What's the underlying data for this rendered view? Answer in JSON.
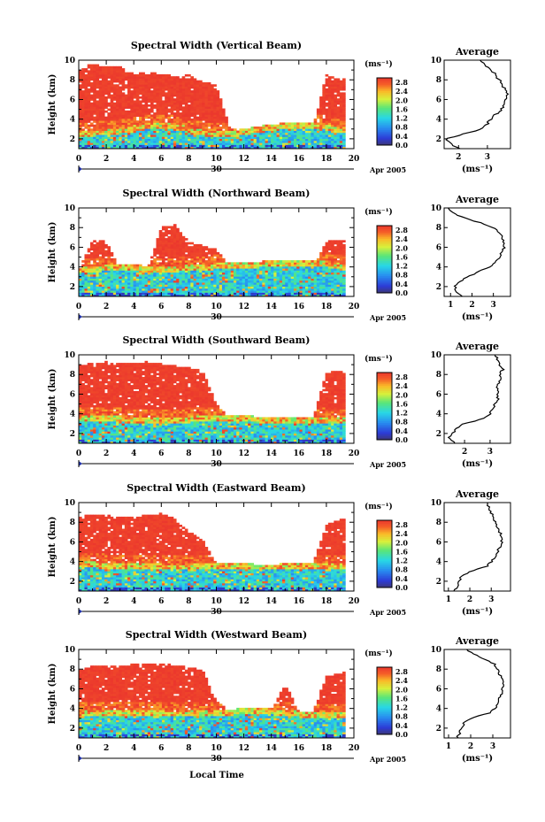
{
  "figure": {
    "x_label": "Local Time",
    "date_day": "30",
    "date_month_year": "Apr 2005"
  },
  "chart_data": [
    {
      "type": "heatmap",
      "title": "Spectral Width (Vertical Beam)",
      "ylabel": "Height (km)",
      "xlim": [
        0,
        20
      ],
      "ylim": [
        1,
        10
      ],
      "x_ticks": [
        0,
        2,
        4,
        6,
        8,
        10,
        12,
        14,
        16,
        18,
        20
      ],
      "y_ticks": [
        2,
        4,
        6,
        8,
        10
      ],
      "colorbar": {
        "unit": "(ms⁻¹)",
        "range": [
          0,
          2.8
        ],
        "ticks": [
          "2.8",
          "2.4",
          "2.0",
          "1.6",
          "1.2",
          "0.8",
          "0.4",
          "0.0"
        ]
      },
      "boundary_height_km": [
        2.5,
        2.6,
        2.8,
        3.2,
        3.3,
        2.9,
        2.4,
        2.5,
        2.9,
        3.2,
        3.4,
        3.3,
        2.8
      ],
      "upper_top_km": [
        9.0,
        9.7,
        9.4,
        9.3,
        8.6,
        8.8,
        8.6,
        8.4,
        8.5,
        7.8,
        7.5,
        3.0,
        3.0,
        3.0,
        3.0,
        3.0,
        3.0,
        3.0,
        8.6,
        8.0,
        8.3
      ],
      "average_profile": {
        "title": "Average",
        "xlabel": "(ms⁻¹)",
        "x_ticks": [
          2,
          3
        ],
        "xlim": [
          1.5,
          3.8
        ],
        "height_km": [
          1.0,
          1.5,
          2.0,
          2.5,
          3.0,
          3.5,
          4.0,
          4.5,
          5.0,
          5.5,
          6.0,
          6.5,
          7.0,
          7.5,
          8.0,
          8.5,
          9.0,
          9.5,
          10.0
        ],
        "value": [
          2.0,
          1.7,
          1.6,
          2.2,
          2.8,
          3.0,
          3.1,
          3.3,
          3.5,
          3.6,
          3.6,
          3.7,
          3.6,
          3.5,
          3.4,
          3.3,
          3.1,
          2.9,
          2.7
        ]
      }
    },
    {
      "type": "heatmap",
      "title": "Spectral Width (Northward Beam)",
      "ylabel": "Height (km)",
      "xlim": [
        0,
        20
      ],
      "ylim": [
        1,
        10
      ],
      "x_ticks": [
        0,
        2,
        4,
        6,
        8,
        10,
        12,
        14,
        16,
        18,
        20
      ],
      "y_ticks": [
        2,
        4,
        6,
        8,
        10
      ],
      "colorbar": {
        "unit": "(ms⁻¹)",
        "range": [
          0,
          2.8
        ],
        "ticks": [
          "2.8",
          "2.4",
          "2.0",
          "1.6",
          "1.2",
          "0.8",
          "0.4",
          "0.0"
        ]
      },
      "boundary_height_km": [
        3.6,
        3.8,
        3.9,
        3.8,
        3.7,
        3.9,
        4.0,
        4.1,
        4.2,
        4.3,
        4.4,
        4.3,
        4.0
      ],
      "upper_top_km": [
        3.6,
        6.8,
        6.6,
        3.8,
        3.8,
        3.8,
        8.1,
        8.3,
        6.5,
        6.2,
        5.8,
        3.9,
        3.9,
        3.9,
        3.9,
        3.9,
        3.9,
        3.9,
        6.6,
        6.8,
        6.6
      ],
      "average_profile": {
        "title": "Average",
        "xlabel": "(ms⁻¹)",
        "x_ticks": [
          1,
          2,
          3
        ],
        "xlim": [
          0.7,
          3.8
        ],
        "height_km": [
          1.0,
          1.5,
          2.0,
          2.5,
          3.0,
          3.5,
          4.0,
          4.5,
          5.0,
          5.5,
          6.0,
          6.5,
          7.0,
          7.5,
          8.0,
          8.5,
          9.0,
          9.5,
          10.0
        ],
        "value": [
          1.5,
          1.3,
          1.2,
          1.4,
          1.8,
          2.3,
          2.8,
          3.1,
          3.3,
          3.4,
          3.5,
          3.5,
          3.4,
          3.3,
          3.0,
          2.4,
          1.6,
          1.1,
          0.9
        ]
      }
    },
    {
      "type": "heatmap",
      "title": "Spectral Width (Southward Beam)",
      "ylabel": "Height (km)",
      "xlim": [
        0,
        20
      ],
      "ylim": [
        1,
        10
      ],
      "x_ticks": [
        0,
        2,
        4,
        6,
        8,
        10,
        12,
        14,
        16,
        18,
        20
      ],
      "y_ticks": [
        2,
        4,
        6,
        8,
        10
      ],
      "colorbar": {
        "unit": "(ms⁻¹)",
        "range": [
          0,
          2.8
        ],
        "ticks": [
          "2.8",
          "2.4",
          "2.0",
          "1.6",
          "1.2",
          "0.8",
          "0.4",
          "0.0"
        ]
      },
      "boundary_height_km": [
        3.4,
        3.5,
        3.4,
        3.3,
        3.3,
        3.4,
        3.5,
        3.5,
        3.4,
        3.3,
        3.3,
        3.4,
        3.3
      ],
      "upper_top_km": [
        8.9,
        9.2,
        9.3,
        9.2,
        9.2,
        9.3,
        9.1,
        8.9,
        8.7,
        8.4,
        5.0,
        3.5,
        3.5,
        3.5,
        3.5,
        3.5,
        3.5,
        3.5,
        8.2,
        8.4,
        8.5
      ],
      "average_profile": {
        "title": "Average",
        "xlabel": "(ms⁻¹)",
        "x_ticks": [
          2,
          3
        ],
        "xlim": [
          1.2,
          3.8
        ],
        "height_km": [
          1.0,
          1.5,
          2.0,
          2.5,
          3.0,
          3.5,
          4.0,
          4.5,
          5.0,
          5.5,
          6.0,
          6.5,
          7.0,
          7.5,
          8.0,
          8.5,
          9.0,
          9.5,
          10.0
        ],
        "value": [
          1.6,
          1.4,
          1.5,
          1.7,
          2.0,
          2.7,
          3.0,
          3.1,
          3.2,
          3.3,
          3.3,
          3.3,
          3.3,
          3.4,
          3.4,
          3.5,
          3.4,
          3.3,
          3.2
        ]
      }
    },
    {
      "type": "heatmap",
      "title": "Spectral Width (Eastward Beam)",
      "ylabel": "Height (km)",
      "xlim": [
        0,
        20
      ],
      "ylim": [
        1,
        10
      ],
      "x_ticks": [
        0,
        2,
        4,
        6,
        8,
        10,
        12,
        14,
        16,
        18,
        20
      ],
      "y_ticks": [
        2,
        4,
        6,
        8,
        10
      ],
      "colorbar": {
        "unit": "(ms⁻¹)",
        "range": [
          0,
          2.8
        ],
        "ticks": [
          "2.8",
          "2.4",
          "2.0",
          "1.6",
          "1.2",
          "0.8",
          "0.4",
          "0.0"
        ]
      },
      "boundary_height_km": [
        3.7,
        3.6,
        3.5,
        3.5,
        3.4,
        3.4,
        3.5,
        3.5,
        3.4,
        3.4,
        3.5,
        3.5,
        3.4
      ],
      "upper_top_km": [
        8.6,
        8.8,
        8.7,
        8.6,
        8.5,
        8.8,
        8.9,
        8.4,
        7.0,
        6.3,
        3.7,
        3.6,
        3.6,
        3.6,
        3.6,
        3.6,
        3.6,
        3.6,
        7.8,
        8.3,
        8.5
      ],
      "average_profile": {
        "title": "Average",
        "xlabel": "(ms⁻¹)",
        "x_ticks": [
          1,
          2,
          3
        ],
        "xlim": [
          0.8,
          3.9
        ],
        "height_km": [
          1.0,
          1.5,
          2.0,
          2.5,
          3.0,
          3.5,
          4.0,
          4.5,
          5.0,
          5.5,
          6.0,
          6.5,
          7.0,
          7.5,
          8.0,
          8.5,
          9.0,
          9.5,
          10.0
        ],
        "value": [
          1.3,
          1.4,
          1.5,
          1.6,
          2.0,
          2.8,
          3.0,
          3.2,
          3.3,
          3.4,
          3.5,
          3.5,
          3.4,
          3.3,
          3.2,
          3.1,
          3.0,
          2.9,
          2.8
        ]
      }
    },
    {
      "type": "heatmap",
      "title": "Spectral Width (Westward Beam)",
      "ylabel": "Height (km)",
      "xlim": [
        0,
        20
      ],
      "ylim": [
        1,
        10
      ],
      "x_ticks": [
        0,
        2,
        4,
        6,
        8,
        10,
        12,
        14,
        16,
        18,
        20
      ],
      "y_ticks": [
        2,
        4,
        6,
        8,
        10
      ],
      "colorbar": {
        "unit": "(ms⁻¹)",
        "range": [
          0,
          2.8
        ],
        "ticks": [
          "2.8",
          "2.4",
          "2.0",
          "1.6",
          "1.2",
          "0.8",
          "0.4",
          "0.0"
        ]
      },
      "boundary_height_km": [
        3.4,
        3.5,
        3.6,
        3.5,
        3.4,
        3.4,
        3.5,
        3.6,
        3.7,
        3.6,
        3.4,
        3.3,
        3.3
      ],
      "upper_top_km": [
        7.8,
        8.4,
        8.3,
        8.4,
        8.5,
        8.5,
        8.6,
        8.4,
        8.2,
        7.9,
        4.8,
        3.6,
        3.8,
        3.7,
        3.7,
        6.5,
        3.7,
        3.7,
        7.3,
        7.6,
        7.8
      ],
      "average_profile": {
        "title": "Average",
        "xlabel": "(ms⁻¹)",
        "x_ticks": [
          1,
          2,
          3
        ],
        "xlim": [
          0.8,
          3.8
        ],
        "height_km": [
          1.0,
          1.5,
          2.0,
          2.5,
          3.0,
          3.5,
          4.0,
          4.5,
          5.0,
          5.5,
          6.0,
          6.5,
          7.0,
          7.5,
          8.0,
          8.5,
          9.0,
          9.5,
          10.0
        ],
        "value": [
          1.4,
          1.5,
          1.6,
          1.7,
          2.0,
          2.8,
          3.1,
          3.2,
          3.3,
          3.4,
          3.4,
          3.5,
          3.4,
          3.3,
          3.2,
          3.1,
          2.6,
          2.2,
          1.8
        ]
      }
    }
  ]
}
